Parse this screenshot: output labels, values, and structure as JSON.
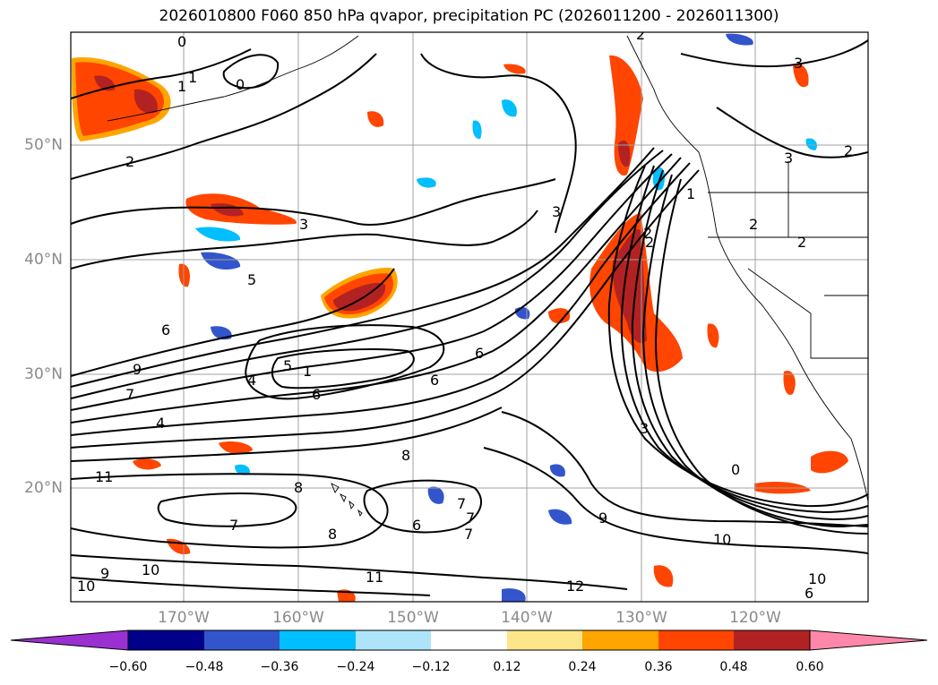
{
  "title": "2026010800 F060 850 hPa qvapor, precipitation PC (2026011200 - 2026011300)",
  "lat_labels": [
    "50°N",
    "40°N",
    "30°N",
    "20°N"
  ],
  "lon_labels": [
    "170°W",
    "160°W",
    "150°W",
    "140°W",
    "130°W",
    "120°W"
  ],
  "colorbar": {
    "colors": [
      "#9b30d0",
      "#00008b",
      "#3355cc",
      "#00bfff",
      "#aee4fa",
      "#ffffff",
      "#fde68a",
      "#ffa500",
      "#ff4500",
      "#b22222",
      "#ff88aa"
    ],
    "ticks": [
      "−0.60",
      "−0.48",
      "−0.36",
      "−0.24",
      "−0.12",
      "0.12",
      "0.24",
      "0.36",
      "0.48",
      "0.60"
    ]
  },
  "contour_labels": [
    "0",
    "0",
    "1",
    "2",
    "2",
    "3",
    "3",
    "3",
    "1",
    "2",
    "2",
    "3",
    "2",
    "2",
    "5",
    "6",
    "9",
    "7",
    "4",
    "5",
    "4",
    "1",
    "6",
    "6",
    "6",
    "8",
    "8",
    "8",
    "7",
    "7",
    "6",
    "7",
    "7",
    "9",
    "10",
    "11",
    "10",
    "9",
    "10",
    "11",
    "12",
    "10",
    "6",
    "0",
    "3",
    "2",
    "1"
  ]
}
